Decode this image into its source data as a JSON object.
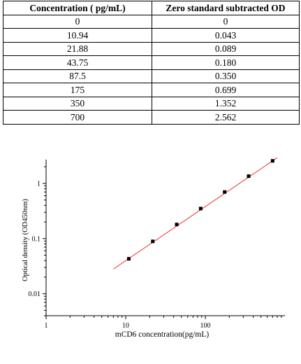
{
  "table": {
    "headers": [
      "Concentration ( pg/mL)",
      "Zero standard subtracted OD"
    ],
    "rows": [
      [
        "0",
        "0"
      ],
      [
        "10.94",
        "0.043"
      ],
      [
        "21.88",
        "0.089"
      ],
      [
        "43.75",
        "0.180"
      ],
      [
        "87.5",
        "0.350"
      ],
      [
        "175",
        "0.699"
      ],
      [
        "350",
        "1.352"
      ],
      [
        "700",
        "2.562"
      ]
    ]
  },
  "chart_data": {
    "type": "scatter",
    "title": "",
    "xlabel": "mCD6 concentration(pg/mL)",
    "ylabel": "Optical density (OD450nm)",
    "xscale": "log",
    "yscale": "log",
    "xlim": [
      1,
      1000
    ],
    "ylim": [
      0.004,
      2.7
    ],
    "xticks": [
      1,
      10,
      100
    ],
    "xticklabels": [
      "1",
      "10",
      "100"
    ],
    "yticks": [
      0.01,
      0.1,
      1
    ],
    "yticklabels": [
      "0.01",
      "0.1",
      "1"
    ],
    "grid": false,
    "series": [
      {
        "x": [
          10.94,
          21.88,
          43.75,
          87.5,
          175,
          350,
          700
        ],
        "y": [
          0.043,
          0.089,
          0.18,
          0.35,
          0.699,
          1.352,
          2.562
        ],
        "marker": "square",
        "color": "#000000"
      }
    ],
    "fit_line": {
      "x": [
        7,
        800
      ],
      "y": [
        0.028,
        2.92
      ],
      "color": "#e8302b"
    }
  }
}
